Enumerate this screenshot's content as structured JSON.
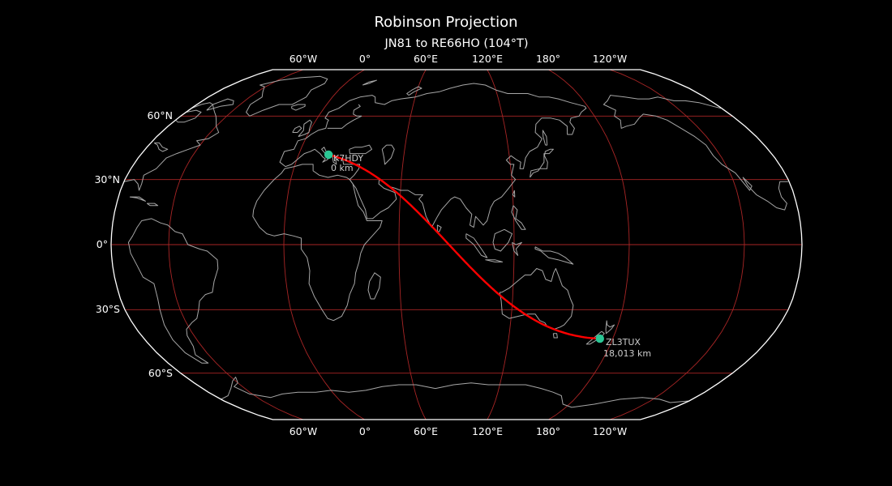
{
  "title": "Robinson Projection",
  "subtitle": "JN81 to RE66HO (104°T)",
  "axes": {
    "lon_labels": [
      "60°W",
      "0°",
      "60°E",
      "120°E",
      "180°",
      "120°W"
    ],
    "lat_labels": [
      "60°N",
      "30°N",
      "0°",
      "30°S",
      "60°S"
    ]
  },
  "colors": {
    "background": "#000000",
    "map_boundary": "#ffffff",
    "graticule": "#a82525",
    "coastline": "#a6a6a6",
    "great_circle": "#ff0000",
    "marker": "#2bc795",
    "marker_label": "#cbcbcb",
    "text": "#ffffff"
  },
  "chart_data": {
    "type": "map",
    "projection": "Robinson",
    "central_meridian_lon_deg_east": 90,
    "graticule": {
      "lon_step_deg": 60,
      "lat_step_deg": 30,
      "lon_lines_deg_east": [
        -60,
        0,
        60,
        120,
        180,
        240
      ],
      "lat_lines_deg_north": [
        60,
        30,
        0,
        -30,
        -60
      ]
    },
    "great_circle_path": {
      "from": {
        "callsign": "K7HDY",
        "maidenhead_grid": "JN81",
        "lat": 41.5,
        "lon": 17.0,
        "distance_label": "0 km"
      },
      "to": {
        "callsign": "ZL3TUX",
        "maidenhead_grid": "RE66HO",
        "lat": -43.4,
        "lon": 172.6,
        "distance_label": "18,013 km"
      },
      "initial_bearing_true_deg": 104,
      "total_distance_km": 18013
    }
  }
}
